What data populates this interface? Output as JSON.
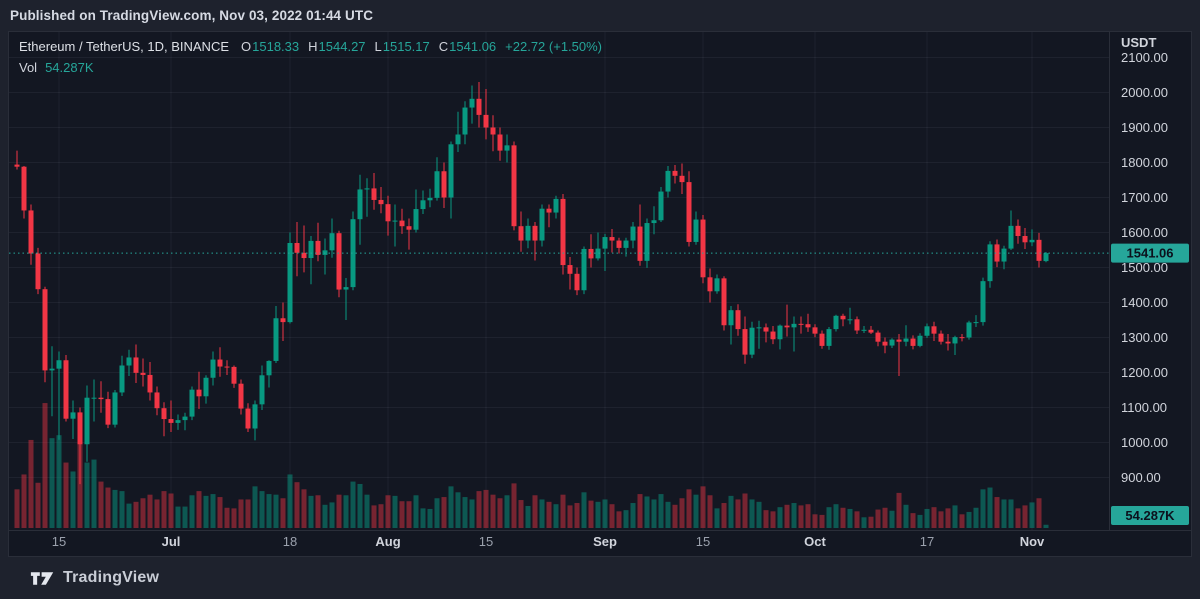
{
  "published_bar": {
    "text": "Published on TradingView.com, Nov 03, 2022 01:44 UTC"
  },
  "legend": {
    "symbol_line": "Ethereum / TetherUS, 1D, BINANCE",
    "open_label": "O",
    "open_value": "1518.33",
    "high_label": "H",
    "high_value": "1544.27",
    "low_label": "L",
    "low_value": "1515.17",
    "close_label": "C",
    "close_value": "1541.06",
    "change_value": "+22.72 (+1.50%)",
    "vol_label": "Vol",
    "vol_value": "54.287K"
  },
  "footer": {
    "brand": "TradingView"
  },
  "colors": {
    "up": "#089981",
    "down": "#f23645",
    "up_vol": "rgba(8,153,129,0.5)",
    "down_vol": "rgba(242,54,69,0.45)",
    "accent": "#26a69a",
    "badge_text": "#0b111d",
    "text": "#d1d4dc",
    "text_dim": "#9ba1ad",
    "grid": "rgba(240,243,250,0.055)",
    "border": "#2a2e39",
    "pane_bg": "#131722",
    "outer_bg": "#1e222d"
  },
  "chart_data": {
    "type": "candlestick",
    "title": "Ethereum / TetherUS, 1D, BINANCE",
    "symbol": "ETHUSDT",
    "interval": "1D",
    "exchange": "BINANCE",
    "currency_label": "USDT",
    "last_price": 1541.06,
    "last_price_label": "1541.06",
    "last_volume_label": "54.287K",
    "price_axis": {
      "ticks": [
        2100,
        2000,
        1900,
        1800,
        1700,
        1600,
        1500,
        1400,
        1300,
        1200,
        1100,
        1000,
        900
      ],
      "tick_format": ".00",
      "ylim": [
        750,
        2170
      ],
      "grid": true
    },
    "time_axis": {
      "grid": true,
      "ticks": [
        {
          "label": "15",
          "index": 6,
          "major": false
        },
        {
          "label": "Jul",
          "index": 22,
          "major": true
        },
        {
          "label": "18",
          "index": 39,
          "major": false
        },
        {
          "label": "Aug",
          "index": 53,
          "major": true
        },
        {
          "label": "15",
          "index": 67,
          "major": false
        },
        {
          "label": "Sep",
          "index": 84,
          "major": true
        },
        {
          "label": "15",
          "index": 98,
          "major": false
        },
        {
          "label": "Oct",
          "index": 114,
          "major": true
        },
        {
          "label": "17",
          "index": 130,
          "major": false
        },
        {
          "label": "Nov",
          "index": 145,
          "major": true
        }
      ]
    },
    "volume_unit": "K",
    "candles_format": [
      "date",
      "open",
      "high",
      "low",
      "close",
      "volume_K"
    ],
    "candles": [
      [
        "2022-06-09",
        1794,
        1834,
        1780,
        1788,
        650
      ],
      [
        "2022-06-10",
        1788,
        1790,
        1640,
        1663,
        900
      ],
      [
        "2022-06-11",
        1663,
        1680,
        1508,
        1540,
        1480
      ],
      [
        "2022-06-12",
        1540,
        1556,
        1424,
        1438,
        760
      ],
      [
        "2022-06-13",
        1438,
        1445,
        1172,
        1206,
        2100
      ],
      [
        "2022-06-14",
        1206,
        1275,
        1075,
        1211,
        1510
      ],
      [
        "2022-06-15",
        1211,
        1260,
        1008,
        1235,
        1560
      ],
      [
        "2022-06-16",
        1235,
        1250,
        1060,
        1068,
        1100
      ],
      [
        "2022-06-17",
        1068,
        1120,
        1010,
        1086,
        950
      ],
      [
        "2022-06-18",
        1086,
        1100,
        881,
        995,
        1650
      ],
      [
        "2022-06-19",
        995,
        1163,
        945,
        1128,
        1100
      ],
      [
        "2022-06-20",
        1128,
        1180,
        1060,
        1128,
        1150
      ],
      [
        "2022-06-21",
        1128,
        1175,
        1085,
        1124,
        780
      ],
      [
        "2022-06-22",
        1124,
        1145,
        1041,
        1051,
        680
      ],
      [
        "2022-06-23",
        1051,
        1150,
        1043,
        1143,
        640
      ],
      [
        "2022-06-24",
        1143,
        1248,
        1133,
        1220,
        620
      ],
      [
        "2022-06-25",
        1220,
        1265,
        1190,
        1243,
        410
      ],
      [
        "2022-06-26",
        1243,
        1280,
        1170,
        1199,
        440
      ],
      [
        "2022-06-27",
        1199,
        1240,
        1160,
        1193,
        500
      ],
      [
        "2022-06-28",
        1193,
        1230,
        1120,
        1143,
        560
      ],
      [
        "2022-06-29",
        1143,
        1160,
        1078,
        1098,
        480
      ],
      [
        "2022-06-30",
        1098,
        1115,
        1018,
        1067,
        620
      ],
      [
        "2022-07-01",
        1067,
        1120,
        1030,
        1056,
        580
      ],
      [
        "2022-07-02",
        1056,
        1080,
        1036,
        1064,
        360
      ],
      [
        "2022-07-03",
        1064,
        1085,
        1035,
        1074,
        360
      ],
      [
        "2022-07-04",
        1074,
        1160,
        1064,
        1151,
        550
      ],
      [
        "2022-07-05",
        1151,
        1202,
        1096,
        1132,
        620
      ],
      [
        "2022-07-06",
        1132,
        1192,
        1111,
        1185,
        540
      ],
      [
        "2022-07-07",
        1185,
        1260,
        1163,
        1237,
        570
      ],
      [
        "2022-07-08",
        1237,
        1272,
        1188,
        1217,
        520
      ],
      [
        "2022-07-09",
        1217,
        1235,
        1193,
        1216,
        340
      ],
      [
        "2022-07-10",
        1216,
        1220,
        1156,
        1168,
        330
      ],
      [
        "2022-07-11",
        1168,
        1180,
        1080,
        1097,
        480
      ],
      [
        "2022-07-12",
        1097,
        1112,
        1030,
        1040,
        480
      ],
      [
        "2022-07-13",
        1040,
        1120,
        1006,
        1109,
        700
      ],
      [
        "2022-07-14",
        1109,
        1220,
        1093,
        1192,
        620
      ],
      [
        "2022-07-15",
        1192,
        1235,
        1157,
        1233,
        570
      ],
      [
        "2022-07-16",
        1233,
        1390,
        1227,
        1355,
        560
      ],
      [
        "2022-07-17",
        1355,
        1400,
        1290,
        1344,
        500
      ],
      [
        "2022-07-18",
        1344,
        1600,
        1340,
        1570,
        900
      ],
      [
        "2022-07-19",
        1570,
        1630,
        1475,
        1542,
        770
      ],
      [
        "2022-07-20",
        1542,
        1620,
        1486,
        1527,
        650
      ],
      [
        "2022-07-21",
        1527,
        1590,
        1452,
        1576,
        540
      ],
      [
        "2022-07-22",
        1576,
        1628,
        1518,
        1536,
        550
      ],
      [
        "2022-07-23",
        1536,
        1583,
        1480,
        1549,
        390
      ],
      [
        "2022-07-24",
        1549,
        1640,
        1528,
        1598,
        430
      ],
      [
        "2022-07-25",
        1598,
        1605,
        1415,
        1437,
        560
      ],
      [
        "2022-07-26",
        1437,
        1470,
        1350,
        1444,
        550
      ],
      [
        "2022-07-27",
        1444,
        1660,
        1435,
        1638,
        780
      ],
      [
        "2022-07-28",
        1638,
        1765,
        1565,
        1723,
        740
      ],
      [
        "2022-07-29",
        1723,
        1755,
        1645,
        1726,
        560
      ],
      [
        "2022-07-30",
        1726,
        1770,
        1665,
        1693,
        380
      ],
      [
        "2022-07-31",
        1693,
        1730,
        1655,
        1681,
        400
      ],
      [
        "2022-08-01",
        1681,
        1705,
        1591,
        1632,
        550
      ],
      [
        "2022-08-02",
        1632,
        1680,
        1560,
        1634,
        540
      ],
      [
        "2022-08-03",
        1634,
        1668,
        1596,
        1618,
        450
      ],
      [
        "2022-08-04",
        1618,
        1640,
        1551,
        1608,
        450
      ],
      [
        "2022-08-05",
        1608,
        1723,
        1600,
        1667,
        550
      ],
      [
        "2022-08-06",
        1667,
        1720,
        1653,
        1692,
        330
      ],
      [
        "2022-08-07",
        1692,
        1725,
        1672,
        1699,
        320
      ],
      [
        "2022-08-08",
        1699,
        1815,
        1691,
        1775,
        500
      ],
      [
        "2022-08-09",
        1775,
        1800,
        1670,
        1700,
        520
      ],
      [
        "2022-08-10",
        1700,
        1860,
        1640,
        1852,
        700
      ],
      [
        "2022-08-11",
        1852,
        1945,
        1830,
        1880,
        600
      ],
      [
        "2022-08-12",
        1880,
        1975,
        1852,
        1957,
        520
      ],
      [
        "2022-08-13",
        1957,
        2020,
        1911,
        1982,
        480
      ],
      [
        "2022-08-14",
        1982,
        2030,
        1900,
        1936,
        620
      ],
      [
        "2022-08-15",
        1936,
        2010,
        1866,
        1900,
        640
      ],
      [
        "2022-08-16",
        1900,
        1935,
        1832,
        1880,
        560
      ],
      [
        "2022-08-17",
        1880,
        1900,
        1805,
        1834,
        500
      ],
      [
        "2022-08-18",
        1834,
        1880,
        1800,
        1849,
        550
      ],
      [
        "2022-08-19",
        1849,
        1860,
        1606,
        1618,
        750
      ],
      [
        "2022-08-20",
        1618,
        1660,
        1545,
        1577,
        470
      ],
      [
        "2022-08-21",
        1577,
        1640,
        1555,
        1619,
        370
      ],
      [
        "2022-08-22",
        1619,
        1630,
        1520,
        1577,
        550
      ],
      [
        "2022-08-23",
        1577,
        1680,
        1560,
        1668,
        480
      ],
      [
        "2022-08-24",
        1668,
        1680,
        1615,
        1657,
        440
      ],
      [
        "2022-08-25",
        1657,
        1705,
        1640,
        1696,
        400
      ],
      [
        "2022-08-26",
        1696,
        1710,
        1480,
        1507,
        560
      ],
      [
        "2022-08-27",
        1507,
        1530,
        1437,
        1482,
        380
      ],
      [
        "2022-08-28",
        1482,
        1500,
        1421,
        1435,
        420
      ],
      [
        "2022-08-29",
        1435,
        1560,
        1424,
        1553,
        600
      ],
      [
        "2022-08-30",
        1553,
        1595,
        1500,
        1526,
        460
      ],
      [
        "2022-08-31",
        1526,
        1600,
        1520,
        1554,
        440
      ],
      [
        "2022-09-01",
        1554,
        1596,
        1490,
        1587,
        480
      ],
      [
        "2022-09-02",
        1587,
        1610,
        1543,
        1577,
        400
      ],
      [
        "2022-09-03",
        1577,
        1585,
        1540,
        1556,
        280
      ],
      [
        "2022-09-04",
        1556,
        1585,
        1531,
        1577,
        300
      ],
      [
        "2022-09-05",
        1577,
        1630,
        1555,
        1617,
        420
      ],
      [
        "2022-09-06",
        1617,
        1680,
        1505,
        1519,
        570
      ],
      [
        "2022-09-07",
        1519,
        1640,
        1499,
        1627,
        530
      ],
      [
        "2022-09-08",
        1627,
        1675,
        1595,
        1635,
        480
      ],
      [
        "2022-09-09",
        1635,
        1730,
        1630,
        1717,
        570
      ],
      [
        "2022-09-10",
        1717,
        1790,
        1700,
        1776,
        440
      ],
      [
        "2022-09-11",
        1776,
        1793,
        1740,
        1762,
        390
      ],
      [
        "2022-09-12",
        1762,
        1797,
        1710,
        1744,
        500
      ],
      [
        "2022-09-13",
        1744,
        1775,
        1560,
        1573,
        650
      ],
      [
        "2022-09-14",
        1573,
        1660,
        1565,
        1637,
        560
      ],
      [
        "2022-09-15",
        1637,
        1650,
        1455,
        1472,
        700
      ],
      [
        "2022-09-16",
        1472,
        1497,
        1400,
        1432,
        550
      ],
      [
        "2022-09-17",
        1432,
        1480,
        1425,
        1469,
        330
      ],
      [
        "2022-09-18",
        1469,
        1475,
        1320,
        1335,
        420
      ],
      [
        "2022-09-19",
        1335,
        1390,
        1280,
        1378,
        540
      ],
      [
        "2022-09-20",
        1378,
        1395,
        1305,
        1324,
        480
      ],
      [
        "2022-09-21",
        1324,
        1360,
        1225,
        1251,
        580
      ],
      [
        "2022-09-22",
        1251,
        1345,
        1241,
        1328,
        480
      ],
      [
        "2022-09-23",
        1328,
        1348,
        1268,
        1329,
        440
      ],
      [
        "2022-09-24",
        1329,
        1340,
        1286,
        1317,
        300
      ],
      [
        "2022-09-25",
        1317,
        1333,
        1281,
        1295,
        280
      ],
      [
        "2022-09-26",
        1295,
        1337,
        1266,
        1334,
        350
      ],
      [
        "2022-09-27",
        1334,
        1394,
        1303,
        1329,
        390
      ],
      [
        "2022-09-28",
        1329,
        1360,
        1260,
        1339,
        420
      ],
      [
        "2022-09-29",
        1339,
        1360,
        1311,
        1338,
        380
      ],
      [
        "2022-09-30",
        1338,
        1368,
        1316,
        1329,
        400
      ],
      [
        "2022-10-01",
        1329,
        1338,
        1301,
        1311,
        230
      ],
      [
        "2022-10-02",
        1311,
        1320,
        1268,
        1276,
        220
      ],
      [
        "2022-10-03",
        1276,
        1330,
        1265,
        1324,
        350
      ],
      [
        "2022-10-04",
        1324,
        1365,
        1317,
        1362,
        400
      ],
      [
        "2022-10-05",
        1362,
        1368,
        1332,
        1352,
        340
      ],
      [
        "2022-10-06",
        1352,
        1385,
        1338,
        1352,
        320
      ],
      [
        "2022-10-07",
        1352,
        1360,
        1310,
        1320,
        280
      ],
      [
        "2022-10-08",
        1320,
        1333,
        1313,
        1322,
        180
      ],
      [
        "2022-10-09",
        1322,
        1333,
        1310,
        1314,
        190
      ],
      [
        "2022-10-10",
        1314,
        1320,
        1275,
        1288,
        310
      ],
      [
        "2022-10-11",
        1288,
        1300,
        1255,
        1277,
        340
      ],
      [
        "2022-10-12",
        1277,
        1298,
        1270,
        1294,
        290
      ],
      [
        "2022-10-13",
        1294,
        1310,
        1190,
        1288,
        590
      ],
      [
        "2022-10-14",
        1288,
        1335,
        1275,
        1297,
        390
      ],
      [
        "2022-10-15",
        1297,
        1306,
        1266,
        1276,
        250
      ],
      [
        "2022-10-16",
        1276,
        1312,
        1272,
        1305,
        220
      ],
      [
        "2022-10-17",
        1305,
        1340,
        1299,
        1332,
        320
      ],
      [
        "2022-10-18",
        1332,
        1345,
        1290,
        1311,
        350
      ],
      [
        "2022-10-19",
        1311,
        1320,
        1280,
        1288,
        280
      ],
      [
        "2022-10-20",
        1288,
        1310,
        1263,
        1283,
        330
      ],
      [
        "2022-10-21",
        1283,
        1305,
        1250,
        1301,
        380
      ],
      [
        "2022-10-22",
        1301,
        1310,
        1289,
        1300,
        230
      ],
      [
        "2022-10-23",
        1300,
        1348,
        1294,
        1343,
        270
      ],
      [
        "2022-10-24",
        1343,
        1364,
        1330,
        1344,
        340
      ],
      [
        "2022-10-25",
        1344,
        1471,
        1334,
        1461,
        650
      ],
      [
        "2022-10-26",
        1461,
        1575,
        1442,
        1566,
        680
      ],
      [
        "2022-10-27",
        1566,
        1580,
        1501,
        1517,
        520
      ],
      [
        "2022-10-28",
        1517,
        1562,
        1495,
        1554,
        480
      ],
      [
        "2022-10-29",
        1554,
        1663,
        1550,
        1619,
        480
      ],
      [
        "2022-10-30",
        1619,
        1637,
        1568,
        1590,
        330
      ],
      [
        "2022-10-31",
        1590,
        1613,
        1553,
        1572,
        380
      ],
      [
        "2022-11-01",
        1572,
        1609,
        1561,
        1579,
        430
      ],
      [
        "2022-11-02",
        1579,
        1599,
        1500,
        1519,
        500
      ],
      [
        "2022-11-03",
        1518.33,
        1544.27,
        1515.17,
        1541.06,
        54.287
      ]
    ]
  }
}
